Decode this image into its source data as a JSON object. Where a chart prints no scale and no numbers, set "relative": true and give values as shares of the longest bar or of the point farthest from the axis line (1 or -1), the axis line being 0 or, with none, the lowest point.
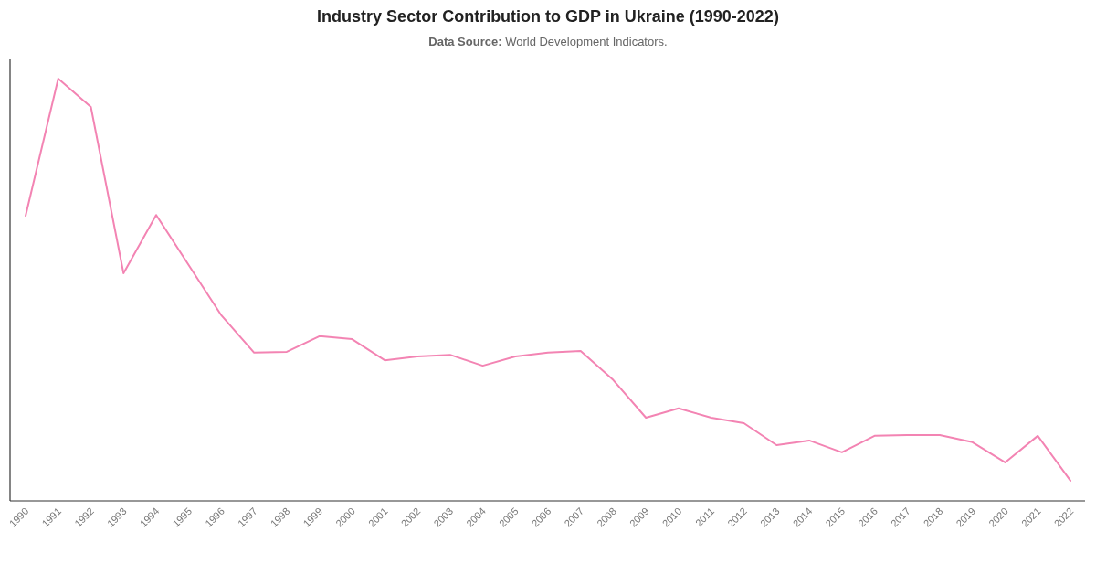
{
  "chart_data": {
    "type": "line",
    "title": "Industry Sector Contribution to GDP in Ukraine (1990-2022)",
    "subtitle": "Data Source: World Development Indicators.",
    "categories": [
      "1990",
      "1991",
      "1992",
      "1993",
      "1994",
      "1995",
      "1996",
      "1997",
      "1998",
      "1999",
      "2000",
      "2001",
      "2002",
      "2003",
      "2004",
      "2005",
      "2006",
      "2007",
      "2008",
      "2009",
      "2010",
      "2011",
      "2012",
      "2013",
      "2014",
      "2015",
      "2016",
      "2017",
      "2018",
      "2019",
      "2020",
      "2021",
      "2022"
    ],
    "series": [
      {
        "color": "#f384b3",
        "values": [
          0.675,
          1.0,
          0.933,
          0.539,
          0.677,
          0.558,
          0.439,
          0.351,
          0.353,
          0.39,
          0.383,
          0.333,
          0.342,
          0.346,
          0.32,
          0.342,
          0.351,
          0.355,
          0.286,
          0.197,
          0.219,
          0.197,
          0.184,
          0.132,
          0.143,
          0.115,
          0.154,
          0.156,
          0.156,
          0.139,
          0.091,
          0.154,
          0.048
        ]
      }
    ],
    "relative": true,
    "tick_labels": "x",
    "grid": false,
    "marker": "none",
    "line_style": "solid"
  }
}
